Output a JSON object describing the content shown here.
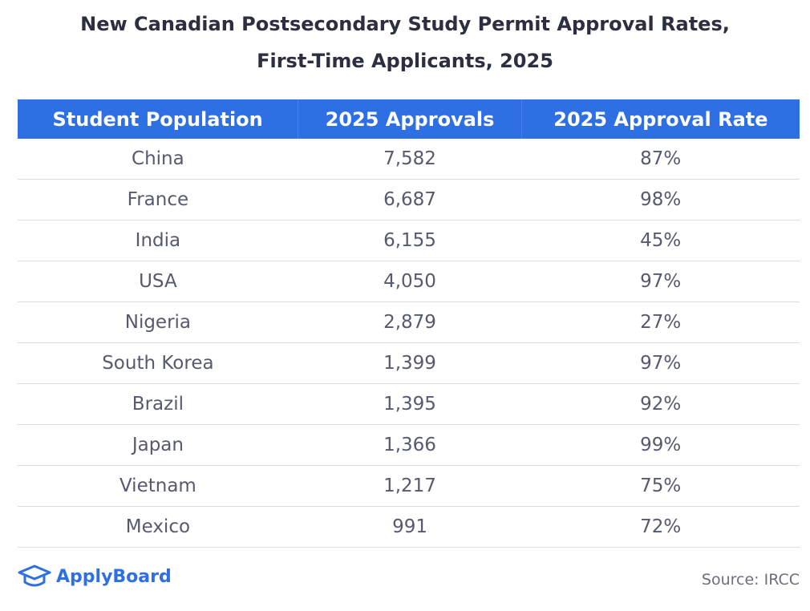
{
  "header": {
    "title": [
      "New Canadian Postsecondary Study Permit Approval Rates,",
      "First-Time Applicants, 2025"
    ]
  },
  "table": {
    "columns": [
      "Student Population",
      "2025 Approvals",
      "2025 Approval Rate"
    ],
    "rows": [
      [
        "China",
        "7,582",
        "87%"
      ],
      [
        "France",
        "6,687",
        "98%"
      ],
      [
        "India",
        "6,155",
        "45%"
      ],
      [
        "USA",
        "4,050",
        "97%"
      ],
      [
        "Nigeria",
        "2,879",
        "27%"
      ],
      [
        "South Korea",
        "1,399",
        "97%"
      ],
      [
        "Brazil",
        "1,395",
        "92%"
      ],
      [
        "Japan",
        "1,366",
        "99%"
      ],
      [
        "Vietnam",
        "1,217",
        "75%"
      ],
      [
        "Mexico",
        "991",
        "72%"
      ]
    ]
  },
  "footer": {
    "logo": "ApplyBoard",
    "source": "Source: IRCC"
  }
}
